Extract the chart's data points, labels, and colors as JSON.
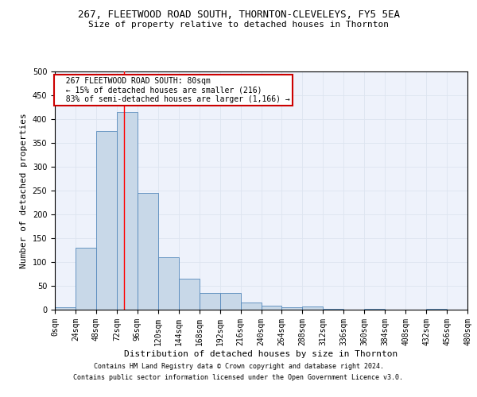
{
  "title": "267, FLEETWOOD ROAD SOUTH, THORNTON-CLEVELEYS, FY5 5EA",
  "subtitle": "Size of property relative to detached houses in Thornton",
  "xlabel": "Distribution of detached houses by size in Thornton",
  "ylabel": "Number of detached properties",
  "annotation_line1": "267 FLEETWOOD ROAD SOUTH: 80sqm",
  "annotation_line2": "← 15% of detached houses are smaller (216)",
  "annotation_line3": "83% of semi-detached houses are larger (1,166) →",
  "footer1": "Contains HM Land Registry data © Crown copyright and database right 2024.",
  "footer2": "Contains public sector information licensed under the Open Government Licence v3.0.",
  "bin_edges": [
    0,
    24,
    48,
    72,
    96,
    120,
    144,
    168,
    192,
    216,
    240,
    264,
    288,
    312,
    336,
    360,
    384,
    408,
    432,
    456,
    480
  ],
  "bar_heights": [
    5,
    130,
    375,
    415,
    245,
    110,
    65,
    35,
    35,
    15,
    8,
    5,
    7,
    1,
    0,
    1,
    0,
    0,
    2,
    0
  ],
  "bar_color": "#c8d8e8",
  "bar_edge_color": "#5588bb",
  "red_line_x": 80,
  "ylim": [
    0,
    500
  ],
  "xlim": [
    0,
    480
  ],
  "annotation_box_color": "#ffffff",
  "annotation_box_edge_color": "#cc0000",
  "grid_color": "#dde4f0",
  "bg_color": "#eef2fb",
  "title_fontsize": 9,
  "subtitle_fontsize": 8,
  "axis_label_fontsize": 8,
  "tick_fontsize": 7,
  "footer_fontsize": 6
}
